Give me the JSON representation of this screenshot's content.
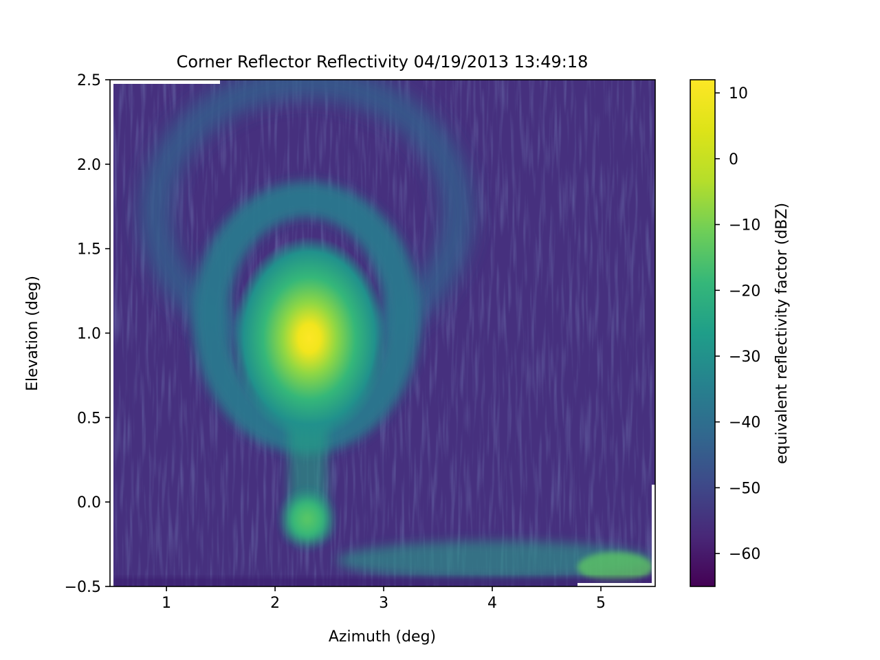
{
  "chart_data": {
    "type": "heatmap",
    "title": "Corner Reflector Reflectivity 04/19/2013 13:49:18",
    "xlabel": "Azimuth (deg)",
    "ylabel": "Elevation (deg)",
    "xlim": [
      0.48,
      5.5
    ],
    "ylim": [
      -0.5,
      2.5
    ],
    "x_ticks": [
      1,
      2,
      3,
      4,
      5
    ],
    "x_tick_labels": [
      "1",
      "2",
      "3",
      "4",
      "5"
    ],
    "y_ticks": [
      -0.5,
      0.0,
      0.5,
      1.0,
      1.5,
      2.0,
      2.5
    ],
    "y_tick_labels": [
      "−0.5",
      "0.0",
      "0.5",
      "1.0",
      "1.5",
      "2.0",
      "2.5"
    ],
    "grid": false,
    "colormap": "viridis",
    "colorbar": {
      "label": "equivalent reflectivity factor (dBZ)",
      "range": [
        -65,
        12
      ],
      "ticks": [
        10,
        0,
        -10,
        -20,
        -30,
        -40,
        -50,
        -60
      ],
      "tick_labels": [
        "10",
        "0",
        "−10",
        "−20",
        "−30",
        "−40",
        "−50",
        "−60"
      ]
    },
    "features": {
      "background_dbz": -60,
      "main_lobe": {
        "azimuth": 2.3,
        "elevation": 0.92,
        "peak_dbz": 11
      },
      "ground_return": {
        "azimuth": 2.3,
        "elevation": -0.12,
        "peak_dbz": -20
      },
      "first_sidelobe_ring": {
        "azimuth_center": 2.3,
        "elevation_center": 1.0,
        "peak_dbz": -40
      },
      "second_sidelobe_ring": {
        "azimuth_center": 2.3,
        "elevation_center": 1.2,
        "peak_dbz": -47
      },
      "clutter_band": {
        "elevation": -0.4,
        "azimuth_range": [
          3.3,
          5.4
        ],
        "peak_dbz": -25
      }
    }
  }
}
